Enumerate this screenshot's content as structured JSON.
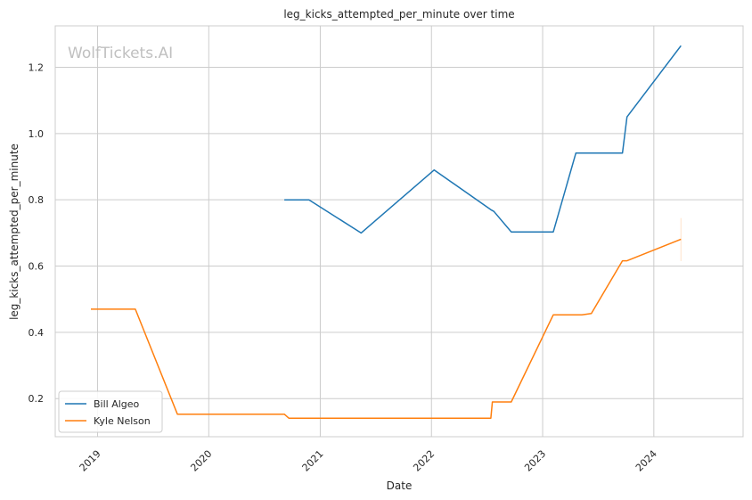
{
  "chart_data": {
    "type": "line",
    "title": "leg_kicks_attempted_per_minute over time",
    "xlabel": "Date",
    "ylabel": "leg_kicks_attempted_per_minute",
    "watermark": "WolfTickets.AI",
    "x_ticks": [
      "2019",
      "2020",
      "2021",
      "2022",
      "2023",
      "2024"
    ],
    "y_ticks": [
      "0.2",
      "0.4",
      "0.6",
      "0.8",
      "1.0",
      "1.2"
    ],
    "xlim": [
      "2018-08-15",
      "2024-10-20"
    ],
    "ylim": [
      0.085,
      1.325
    ],
    "grid": true,
    "legend_position": "lower-left",
    "series": [
      {
        "name": "Bill Algeo",
        "color": "#1f77b4",
        "points": [
          [
            "2020-09-05",
            0.8
          ],
          [
            "2020-11-25",
            0.8
          ],
          [
            "2021-05-15",
            0.7
          ],
          [
            "2022-01-10",
            0.89
          ],
          [
            "2022-07-15",
            0.77
          ],
          [
            "2022-07-25",
            0.765
          ],
          [
            "2022-09-20",
            0.703
          ],
          [
            "2023-02-05",
            0.703
          ],
          [
            "2023-04-20",
            0.941
          ],
          [
            "2023-09-20",
            0.941
          ],
          [
            "2023-10-05",
            1.05
          ],
          [
            "2024-03-30",
            1.265
          ]
        ]
      },
      {
        "name": "Kyle Nelson",
        "color": "#ff7f0e",
        "points": [
          [
            "2018-12-10",
            0.47
          ],
          [
            "2019-05-05",
            0.47
          ],
          [
            "2019-09-20",
            0.153
          ],
          [
            "2020-09-05",
            0.153
          ],
          [
            "2020-09-20",
            0.141
          ],
          [
            "2022-07-15",
            0.141
          ],
          [
            "2022-07-20",
            0.19
          ],
          [
            "2022-09-20",
            0.19
          ],
          [
            "2023-02-05",
            0.453
          ],
          [
            "2023-05-10",
            0.453
          ],
          [
            "2023-06-10",
            0.457
          ],
          [
            "2023-09-20",
            0.616
          ],
          [
            "2023-10-05",
            0.616
          ],
          [
            "2024-03-30",
            0.681
          ]
        ],
        "error_bar": {
          "x": "2024-03-30",
          "low": 0.615,
          "high": 0.745
        }
      }
    ]
  }
}
